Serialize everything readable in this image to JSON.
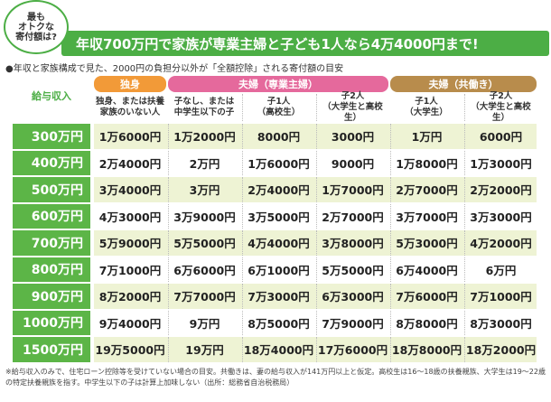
{
  "badge": [
    "最も",
    "オトクな",
    "寄付額は?"
  ],
  "title": "年収700万円で家族が専業主婦と子ども1人なら4万4000円まで!",
  "subtitle": "●年収と家族構成で見た、2000円の負担分以外が「全額控除」される寄付額の目安",
  "table": {
    "corner": "給与収入",
    "groups": [
      {
        "label": "独身",
        "columns": [
          [
            "独身、または扶養",
            "家族のいない人"
          ]
        ]
      },
      {
        "label": "夫婦（専業主婦）",
        "columns": [
          [
            "子なし、または",
            "中学生以下の子"
          ],
          [
            "子1人",
            "（高校生）"
          ],
          [
            "子2人",
            "（大学生と高校生）"
          ]
        ]
      },
      {
        "label": "夫婦（共働き）",
        "columns": [
          [
            "子1人",
            "（大学生）"
          ],
          [
            "子2人",
            "（大学生と高校生）"
          ]
        ]
      }
    ],
    "rows": [
      {
        "income": "300万円",
        "values": [
          "1万6000円",
          "1万2000円",
          "8000円",
          "3000円",
          "1万円",
          "6000円"
        ]
      },
      {
        "income": "400万円",
        "values": [
          "2万4000円",
          "2万円",
          "1万6000円",
          "9000円",
          "1万8000円",
          "1万3000円"
        ]
      },
      {
        "income": "500万円",
        "values": [
          "3万4000円",
          "3万円",
          "2万4000円",
          "1万7000円",
          "2万7000円",
          "2万2000円"
        ]
      },
      {
        "income": "600万円",
        "values": [
          "4万3000円",
          "3万9000円",
          "3万5000円",
          "2万7000円",
          "3万7000円",
          "3万3000円"
        ]
      },
      {
        "income": "700万円",
        "values": [
          "5万9000円",
          "5万5000円",
          "4万4000円",
          "3万8000円",
          "5万3000円",
          "4万2000円"
        ]
      },
      {
        "income": "800万円",
        "values": [
          "7万1000円",
          "6万6000円",
          "6万1000円",
          "5万5000円",
          "6万4000円",
          "6万円"
        ]
      },
      {
        "income": "900万円",
        "values": [
          "8万2000円",
          "7万7000円",
          "7万3000円",
          "6万3000円",
          "7万6000円",
          "7万1000円"
        ]
      },
      {
        "income": "1000万円",
        "values": [
          "9万4000円",
          "9万円",
          "8万5000円",
          "7万9000円",
          "8万8000円",
          "8万3000円"
        ]
      },
      {
        "income": "1500万円",
        "values": [
          "19万5000円",
          "19万円",
          "18万4000円",
          "17万6000円",
          "18万8000円",
          "18万2000円"
        ]
      }
    ]
  },
  "footnote": "※給与収入のみで、住宅ローン控除等を受けていない場合の目安。共働きは、妻の給与収入が141万円以上と仮定。高校生は16〜18歳の扶養親族、大学生は19〜22歳の特定扶養親族を指す。中学生以下の子は計算上加味しない（出所：総務省自治税務局）"
}
